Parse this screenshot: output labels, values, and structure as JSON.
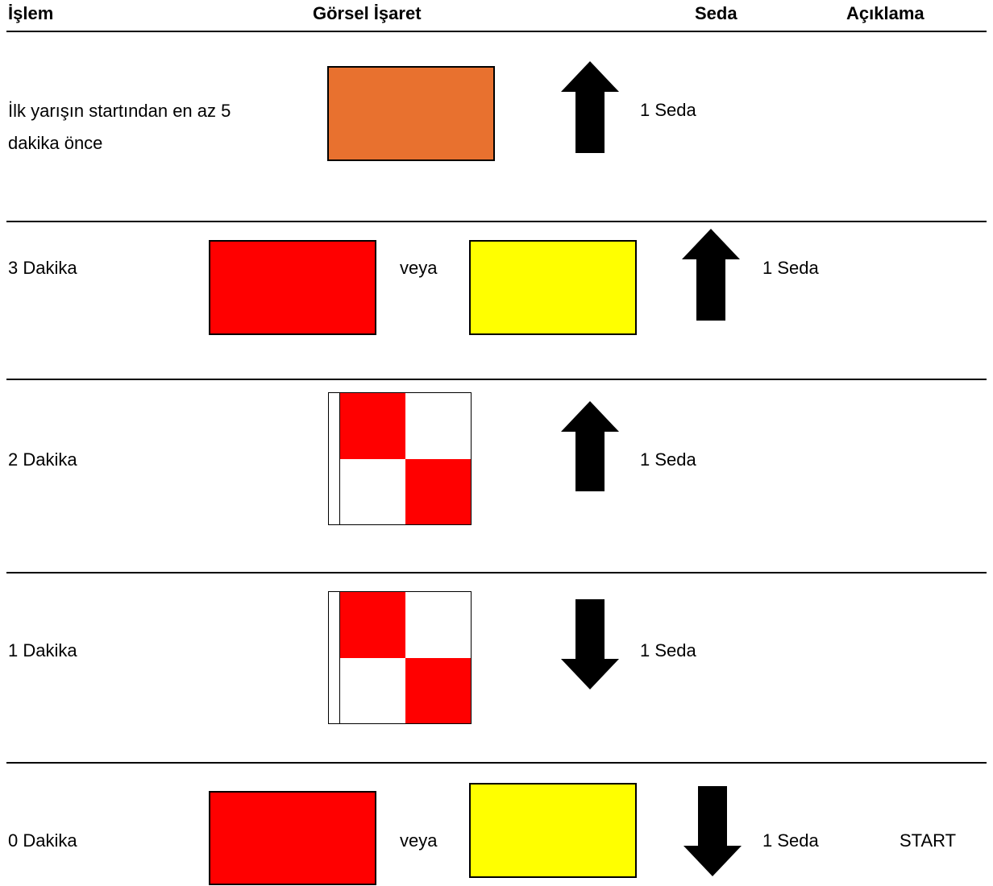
{
  "header": {
    "islem": "İşlem",
    "gorsel_isaret": "Görsel İşaret",
    "seda": "Seda",
    "aciklama": "Açıklama"
  },
  "colors": {
    "orange": "#E8712F",
    "red": "#FF0000",
    "yellow": "#FFFF00",
    "black": "#000000"
  },
  "rows": [
    {
      "islem_line1": "İlk yarışın startından en az 5",
      "islem_line2": "dakika önce",
      "arrow": "up-arrow-icon",
      "seda": "1 Seda",
      "aciklama": ""
    },
    {
      "islem": "3 Dakika",
      "or_text": "veya",
      "arrow": "up-arrow-icon",
      "seda": "1 Seda",
      "aciklama": ""
    },
    {
      "islem": "2 Dakika",
      "arrow": "up-arrow-icon",
      "seda": "1 Seda",
      "aciklama": ""
    },
    {
      "islem": "1 Dakika",
      "arrow": "down-arrow-icon",
      "seda": "1 Seda",
      "aciklama": ""
    },
    {
      "islem": "0 Dakika",
      "or_text": "veya",
      "arrow": "down-arrow-icon",
      "seda": "1 Seda",
      "aciklama": "START"
    }
  ]
}
